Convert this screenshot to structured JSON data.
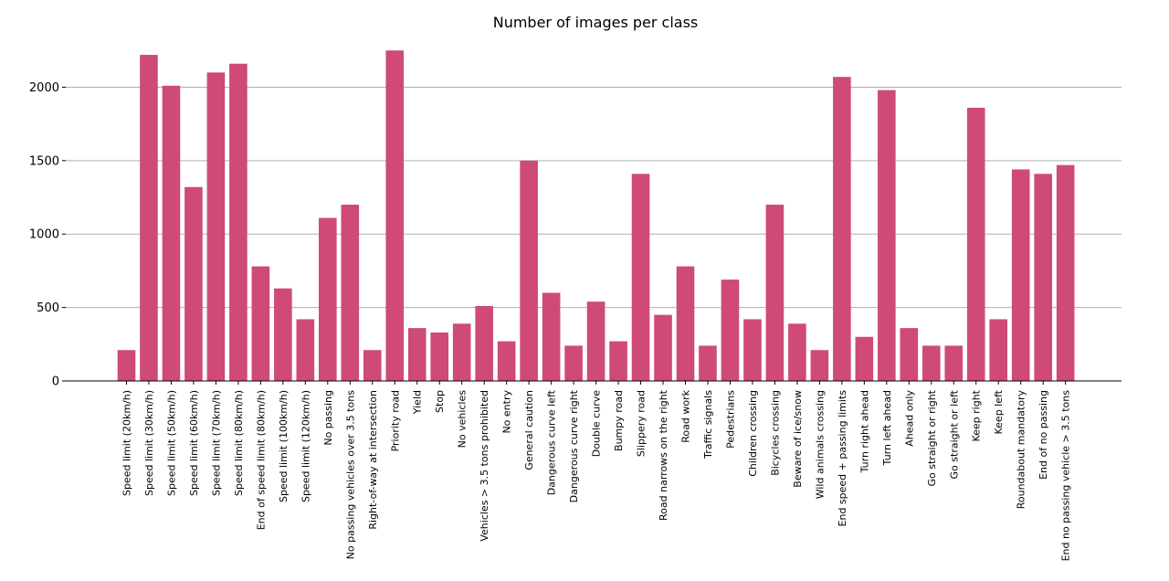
{
  "chart_data": {
    "type": "bar",
    "title": "Number of images per class",
    "xlabel": "",
    "ylabel": "",
    "ylim": [
      0,
      2320
    ],
    "yticks": [
      0,
      500,
      1000,
      1500,
      2000
    ],
    "grid": "horizontal",
    "bar_color": "#cf4a74",
    "grid_color": "#b0b0b0",
    "categories": [
      "Speed limit (20km/h)",
      "Speed limit (30km/h)",
      "Speed limit (50km/h)",
      "Speed limit (60km/h)",
      "Speed limit (70km/h)",
      "Speed limit (80km/h)",
      "End of speed limit (80km/h)",
      "Speed limit (100km/h)",
      "Speed limit (120km/h)",
      "No passing",
      "No passing vehicles over 3.5 tons",
      "Right-of-way at intersection",
      "Priority road",
      "Yield",
      "Stop",
      "No vehicles",
      "Vehicles > 3.5 tons prohibited",
      "No entry",
      "General caution",
      "Dangerous curve left",
      "Dangerous curve right",
      "Double curve",
      "Bumpy road",
      "Slippery road",
      "Road narrows on the right",
      "Road work",
      "Traffic signals",
      "Pedestrians",
      "Children crossing",
      "Bicycles crossing",
      "Beware of ice/snow",
      "Wild animals crossing",
      "End speed + passing limits",
      "Turn right ahead",
      "Turn left ahead",
      "Ahead only",
      "Go straight or right",
      "Go straight or left",
      "Keep right",
      "Keep left",
      "Roundabout mandatory",
      "End of no passing",
      "End no passing vehicle > 3.5 tons"
    ],
    "values": [
      210,
      2220,
      2010,
      1320,
      2100,
      2160,
      780,
      630,
      420,
      1110,
      1200,
      210,
      2250,
      360,
      330,
      390,
      510,
      270,
      1500,
      600,
      240,
      540,
      270,
      1410,
      450,
      780,
      240,
      690,
      420,
      1200,
      390,
      210,
      2070,
      300,
      1980,
      360,
      240,
      240,
      1860,
      420,
      1440,
      1410,
      1470
    ]
  }
}
